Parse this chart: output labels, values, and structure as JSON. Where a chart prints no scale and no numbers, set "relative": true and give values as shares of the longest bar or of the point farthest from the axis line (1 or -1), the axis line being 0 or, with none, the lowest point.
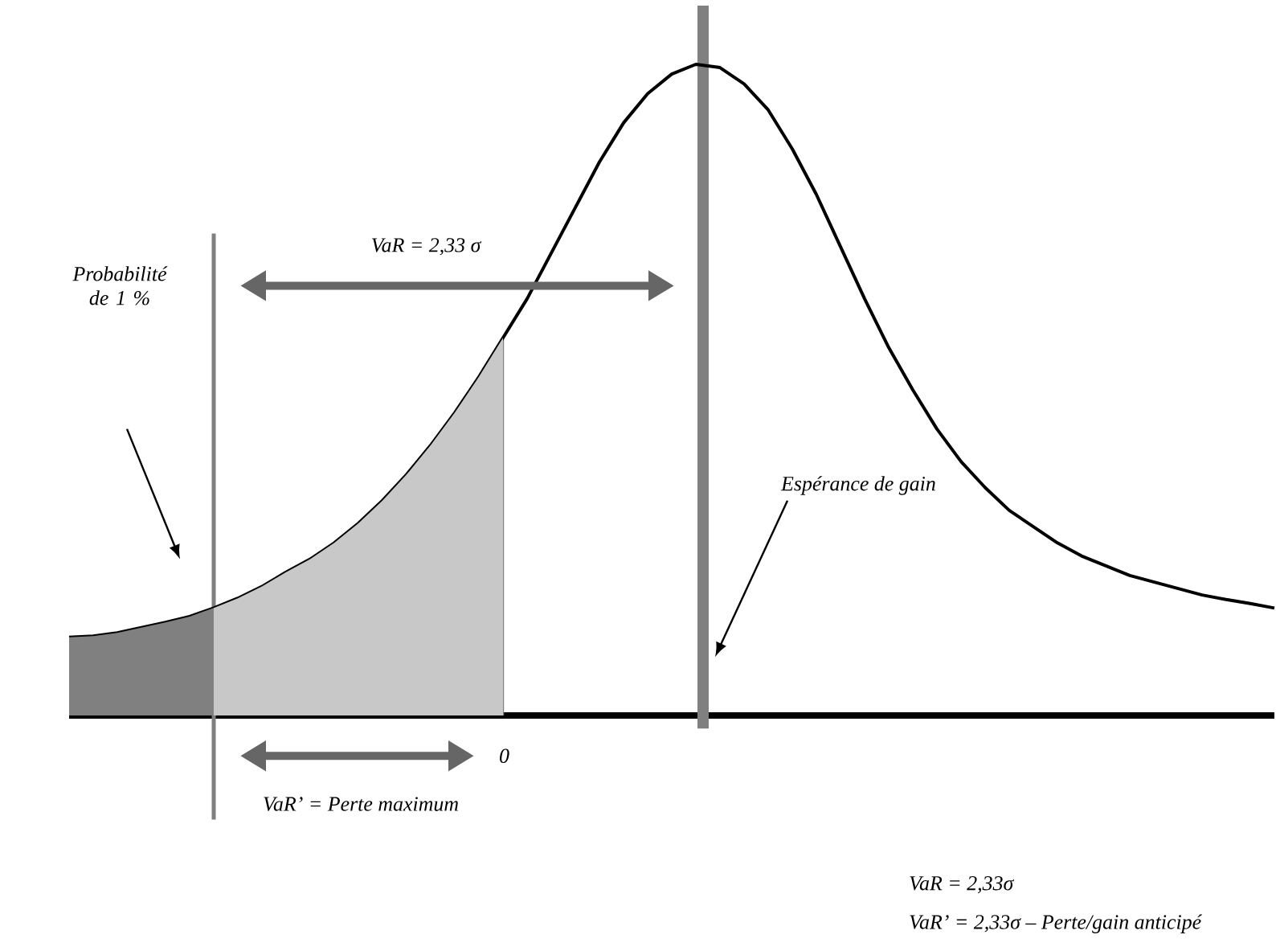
{
  "chart_data": {
    "type": "line",
    "relative": true,
    "categories": [
      null,
      null,
      null,
      null,
      null,
      null,
      null,
      null,
      null,
      null,
      null,
      null,
      null,
      null,
      null,
      null,
      null,
      null,
      null,
      null,
      null,
      null,
      null,
      null,
      null,
      null,
      null,
      null,
      null,
      null,
      null,
      null,
      null,
      null,
      null,
      null,
      null,
      null,
      null,
      null,
      null,
      null,
      null,
      null,
      null,
      null,
      null,
      null,
      null,
      null,
      null
    ],
    "series": [
      {
        "color": "#000000",
        "values": [
          0.12,
          0.122,
          0.127,
          0.135,
          0.143,
          0.152,
          0.165,
          0.18,
          0.198,
          0.22,
          0.24,
          0.265,
          0.295,
          0.33,
          0.37,
          0.415,
          0.465,
          0.52,
          0.58,
          0.64,
          0.71,
          0.78,
          0.85,
          0.91,
          0.955,
          0.985,
          1.0,
          0.995,
          0.97,
          0.93,
          0.87,
          0.8,
          0.72,
          0.64,
          0.565,
          0.5,
          0.44,
          0.39,
          0.35,
          0.315,
          0.29,
          0.265,
          0.245,
          0.23,
          0.215,
          0.205,
          0.195,
          0.185,
          0.178,
          0.172,
          0.165
        ]
      },
      {
        "type": "area",
        "color": "#808080",
        "values": [
          0.12,
          0.122,
          0.127,
          0.135,
          0.143,
          0.152,
          0.165,
          null,
          null,
          null,
          null,
          null,
          null,
          null,
          null,
          null,
          null,
          null,
          null,
          null,
          null,
          null,
          null,
          null,
          null,
          null,
          null,
          null,
          null,
          null,
          null,
          null,
          null,
          null,
          null,
          null,
          null,
          null,
          null,
          null,
          null,
          null,
          null,
          null,
          null,
          null,
          null,
          null,
          null,
          null,
          null
        ]
      },
      {
        "type": "area",
        "color": "#c8c8c8",
        "values": [
          null,
          null,
          null,
          null,
          null,
          null,
          0.165,
          0.18,
          0.198,
          0.22,
          0.24,
          0.265,
          0.295,
          0.33,
          0.37,
          0.415,
          0.465,
          0.52,
          0.58,
          null,
          null,
          null,
          null,
          null,
          null,
          null,
          null,
          null,
          null,
          null,
          null,
          null,
          null,
          null,
          null,
          null,
          null,
          null,
          null,
          null,
          null,
          null,
          null,
          null,
          null,
          null,
          null,
          null,
          null,
          null,
          null
        ]
      }
    ],
    "annotations": [
      "Probabilité de 1 %",
      "VaR  = 2,33 σ",
      "0",
      "VaR’ = Perte maximum",
      "VaR  = 2,33σ",
      "VaR’  = 2,33σ – Perte/gain anticipé",
      "Espérance de gain"
    ]
  }
}
